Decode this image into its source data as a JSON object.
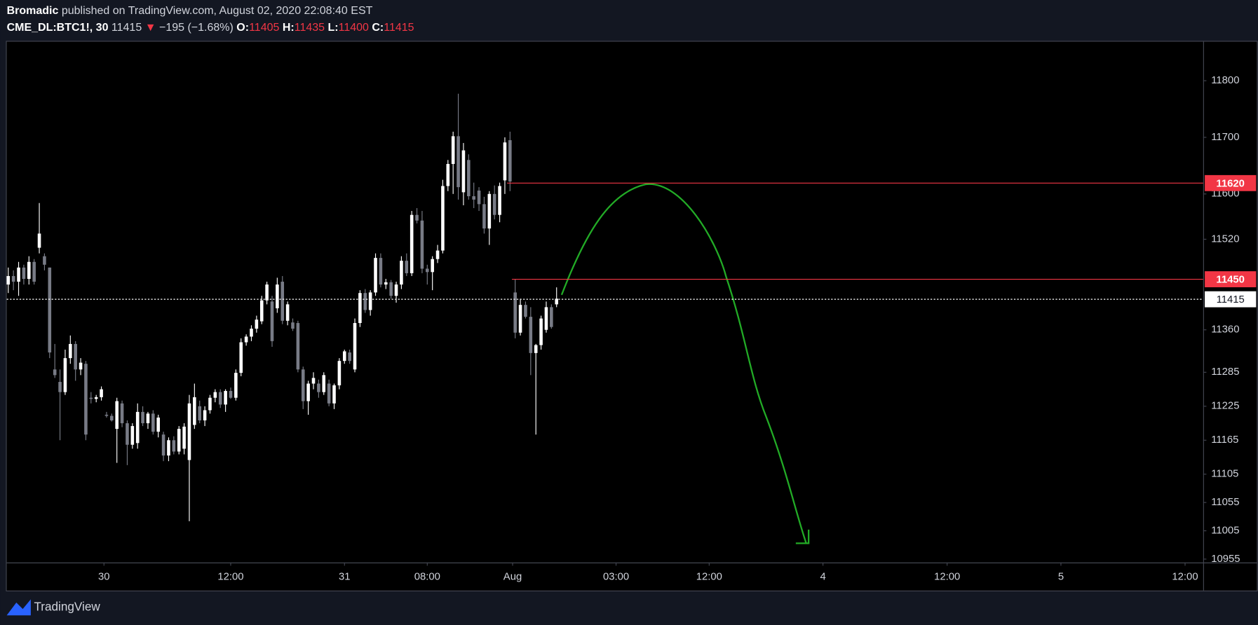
{
  "header": {
    "author": "Bromadic",
    "published": "published on TradingView.com, August 02, 2020 22:08:40 EST",
    "symbol": "CME_DL:BTC1!, 30",
    "last": "11415",
    "arrow": "▼",
    "change": "−195 (−1.68%)",
    "open_label": "O:",
    "open": "11405",
    "high_label": "H:",
    "high": "11435",
    "low_label": "L:",
    "low": "11400",
    "close_label": "C:",
    "close": "11415"
  },
  "footer": {
    "brand": "TradingView"
  },
  "chart_data": {
    "type": "candlestick",
    "up_color": "#ffffff",
    "down_color": "#787b86",
    "open": [
      11440,
      11455,
      11445,
      11470,
      11450,
      11480,
      11505,
      11490,
      11470,
      11290,
      11268,
      11250,
      11310,
      11335,
      11290,
      11300,
      11240,
      11238,
      11241,
      11210,
      11208,
      11185,
      11230,
      11195,
      11157,
      11160,
      11215,
      11195,
      11212,
      11180,
      11175,
      11138,
      11165,
      11145,
      11150,
      11130,
      11192,
      11225,
      11200,
      11218,
      11240,
      11250,
      11228,
      11252,
      11240,
      11284,
      11338,
      11348,
      11362,
      11375,
      11412,
      11410,
      11398,
      11445,
      11376,
      11373,
      11372,
      11290,
      11234,
      11265,
      11265,
      11250,
      11265,
      11230,
      11262,
      11305,
      11320,
      11290,
      11372,
      11425,
      11395,
      11426,
      11487,
      11440,
      11444,
      11420,
      11440,
      11482,
      11460,
      11563,
      11553,
      11468,
      11462,
      11485,
      11500,
      11614,
      11653,
      11702,
      11603,
      11660,
      11596,
      11606,
      11582,
      11539,
      11600,
      11563,
      11624,
      11695,
      11426,
      11355,
      11404,
      11383,
      11319,
      11333,
      11360,
      11400,
      11405
    ],
    "high": [
      11470,
      11465,
      11480,
      11475,
      11490,
      11485,
      11584,
      11495,
      11470,
      11335,
      11290,
      11325,
      11350,
      11340,
      11310,
      11305,
      11250,
      11245,
      11260,
      11215,
      11212,
      11240,
      11235,
      11200,
      11195,
      11230,
      11225,
      11215,
      11218,
      11210,
      11180,
      11170,
      11172,
      11190,
      11195,
      11245,
      11265,
      11235,
      11225,
      11245,
      11255,
      11255,
      11255,
      11258,
      11290,
      11345,
      11352,
      11368,
      11385,
      11420,
      11445,
      11420,
      11452,
      11455,
      11410,
      11380,
      11376,
      11295,
      11270,
      11285,
      11272,
      11285,
      11272,
      11265,
      11310,
      11325,
      11325,
      11380,
      11430,
      11432,
      11430,
      11495,
      11495,
      11450,
      11448,
      11445,
      11490,
      11495,
      11570,
      11575,
      11570,
      11475,
      11490,
      11510,
      11625,
      11660,
      11710,
      11777,
      11690,
      11670,
      11620,
      11612,
      11595,
      11605,
      11615,
      11620,
      11700,
      11710,
      11450,
      11415,
      11410,
      11400,
      11335,
      11385,
      11410,
      11405,
      11435
    ],
    "low": [
      11425,
      11430,
      11420,
      11440,
      11440,
      11440,
      11495,
      11465,
      11310,
      11275,
      11165,
      11245,
      11300,
      11270,
      11280,
      11165,
      11230,
      11232,
      11235,
      11205,
      11198,
      11125,
      11188,
      11121,
      11150,
      11150,
      11190,
      11185,
      11175,
      11170,
      11128,
      11128,
      11140,
      11140,
      11140,
      11022,
      11185,
      11195,
      11190,
      11212,
      11232,
      11222,
      11215,
      11238,
      11235,
      11278,
      11332,
      11340,
      11355,
      11370,
      11405,
      11330,
      11390,
      11370,
      11368,
      11358,
      11285,
      11220,
      11210,
      11255,
      11240,
      11245,
      11225,
      11220,
      11255,
      11300,
      11300,
      11285,
      11365,
      11390,
      11385,
      11420,
      11435,
      11432,
      11415,
      11408,
      11432,
      11455,
      11455,
      11548,
      11460,
      11440,
      11430,
      11478,
      11495,
      11605,
      11600,
      11590,
      11580,
      11590,
      11575,
      11570,
      11530,
      11510,
      11555,
      11550,
      11600,
      11605,
      11345,
      11350,
      11380,
      11280,
      11175,
      11325,
      11355,
      11362,
      11400
    ],
    "close": [
      11455,
      11445,
      11470,
      11450,
      11480,
      11445,
      11530,
      11475,
      11320,
      11280,
      11250,
      11310,
      11335,
      11290,
      11302,
      11175,
      11238,
      11241,
      11255,
      11208,
      11200,
      11234,
      11195,
      11157,
      11190,
      11215,
      11195,
      11212,
      11180,
      11205,
      11138,
      11165,
      11145,
      11185,
      11189,
      11230,
      11241,
      11200,
      11218,
      11240,
      11250,
      11228,
      11252,
      11240,
      11284,
      11338,
      11348,
      11362,
      11378,
      11412,
      11440,
      11340,
      11440,
      11376,
      11405,
      11362,
      11290,
      11234,
      11265,
      11275,
      11250,
      11280,
      11230,
      11262,
      11305,
      11322,
      11305,
      11372,
      11425,
      11395,
      11426,
      11487,
      11440,
      11444,
      11420,
      11440,
      11482,
      11460,
      11563,
      11553,
      11468,
      11462,
      11485,
      11500,
      11614,
      11653,
      11702,
      11612,
      11677,
      11596,
      11590,
      11582,
      11539,
      11600,
      11563,
      11614,
      11691,
      11622,
      11355,
      11404,
      11383,
      11319,
      11333,
      11380,
      11400,
      11365,
      11415
    ],
    "xlim": [
      -0.3,
      231
    ],
    "xticks": [
      {
        "value": 18.5,
        "label": "30"
      },
      {
        "value": 43,
        "label": "12:00"
      },
      {
        "value": 65,
        "label": "31"
      },
      {
        "value": 81,
        "label": "08:00"
      },
      {
        "value": 97.5,
        "label": "Aug"
      },
      {
        "value": 117.5,
        "label": "03:00"
      },
      {
        "value": 135.5,
        "label": "12:00"
      },
      {
        "value": 157.5,
        "label": "4"
      },
      {
        "value": 181.5,
        "label": "12:00"
      },
      {
        "value": 203.5,
        "label": "5"
      },
      {
        "value": 227.5,
        "label": "12:00"
      }
    ],
    "ylim": [
      10949,
      11869
    ],
    "yticks": [
      11800,
      11700,
      11600,
      11520,
      11360,
      11285,
      11225,
      11165,
      11105,
      11055,
      11005,
      10955
    ],
    "hlines": [
      {
        "value": 11620,
        "color": "#f23645",
        "style": "solid"
      },
      {
        "value": 11450,
        "color": "#f23645",
        "style": "solid"
      },
      {
        "value": 11415,
        "color": "#ffffff",
        "style": "dotted"
      }
    ]
  }
}
